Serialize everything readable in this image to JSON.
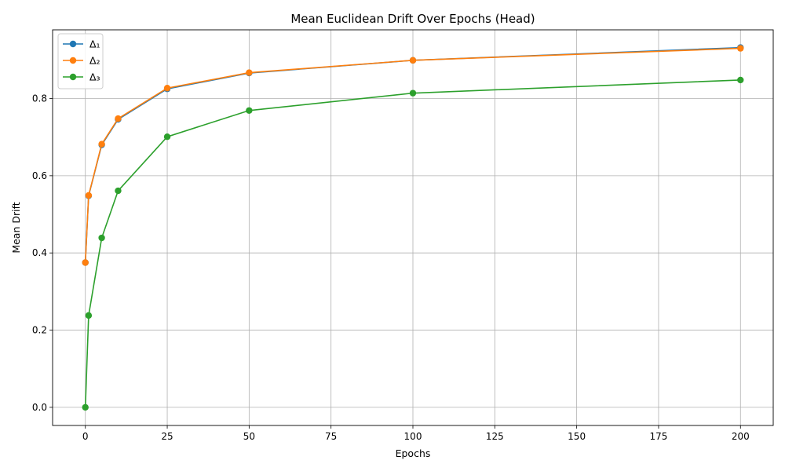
{
  "chart_data": {
    "type": "line",
    "title": "Mean Euclidean Drift Over Epochs (Head)",
    "xlabel": "Epochs",
    "ylabel": "Mean Drift",
    "xlim": [
      -10,
      210
    ],
    "ylim": [
      -0.047,
      0.978
    ],
    "xticks": [
      0,
      25,
      50,
      75,
      100,
      125,
      150,
      175,
      200
    ],
    "xtick_labels": [
      "0",
      "25",
      "50",
      "75",
      "100",
      "125",
      "150",
      "175",
      "200"
    ],
    "yticks": [
      0.0,
      0.2,
      0.4,
      0.6,
      0.8
    ],
    "ytick_labels": [
      "0.0",
      "0.2",
      "0.4",
      "0.6",
      "0.8"
    ],
    "grid": true,
    "legend_position": "upper-left",
    "x": [
      0,
      1,
      5,
      10,
      25,
      50,
      100,
      200
    ],
    "series": [
      {
        "name": "Δ₁",
        "color": "#1f77b4",
        "values": [
          0.375,
          0.548,
          0.68,
          0.746,
          0.825,
          0.866,
          0.899,
          0.932
        ]
      },
      {
        "name": "Δ₂",
        "color": "#ff7f0e",
        "values": [
          0.375,
          0.549,
          0.682,
          0.748,
          0.827,
          0.867,
          0.899,
          0.93
        ]
      },
      {
        "name": "Δ₃",
        "color": "#2ca02c",
        "values": [
          0.0,
          0.238,
          0.439,
          0.561,
          0.701,
          0.769,
          0.814,
          0.848
        ]
      }
    ]
  }
}
